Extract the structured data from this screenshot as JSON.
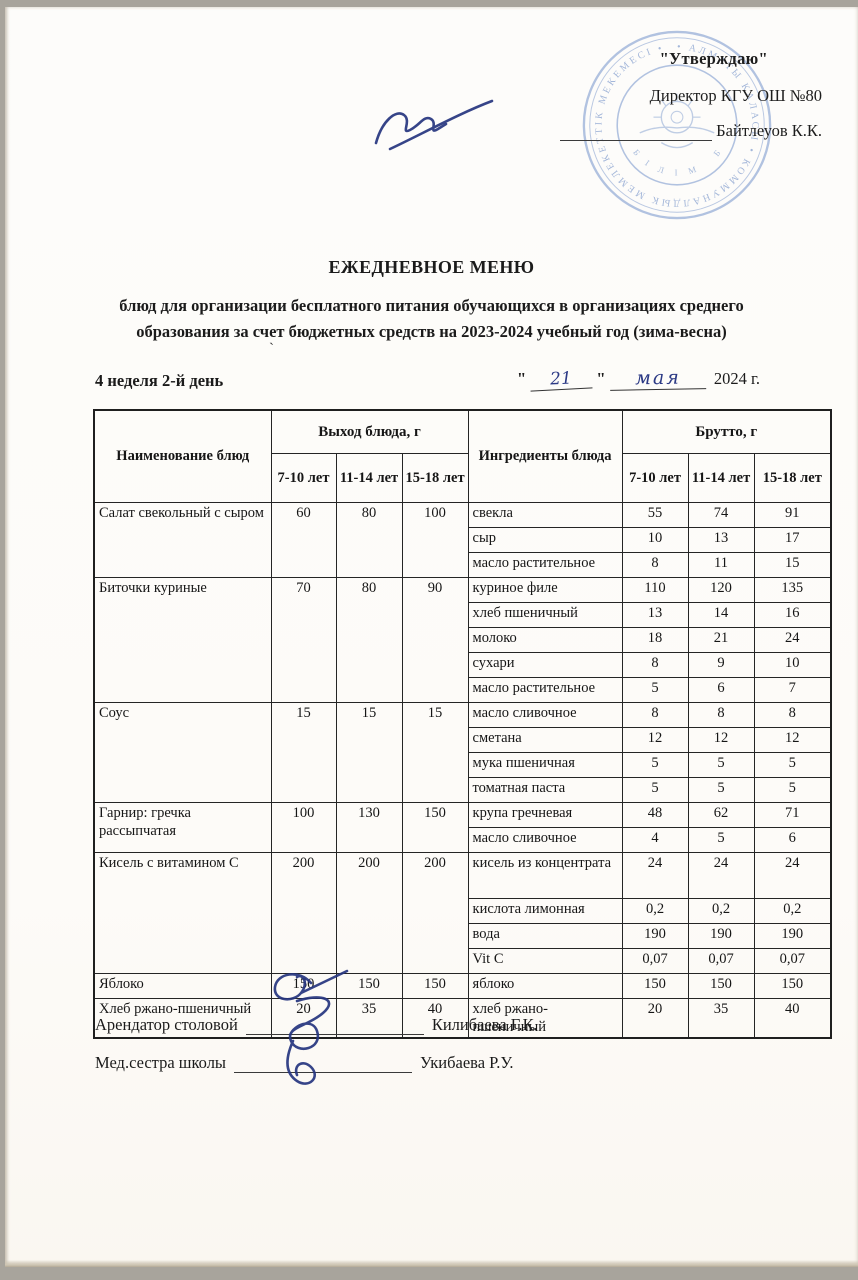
{
  "approval": {
    "approve": "\"Утверждаю\"",
    "director": "Директор КГУ ОШ №80",
    "director_name": "Байтлеуов К.К."
  },
  "stamp": {
    "ring_text": "• АЛМАТЫ КАЛАСЫ • КОММУНАЛДЫК МЕМЛЕКЕТТІК МЕКЕМЕСІ •",
    "inner_text": "БІЛІМ БЕРУ"
  },
  "header": {
    "title": "ЕЖЕДНЕВНОЕ МЕНЮ",
    "subtitle": "блюд для организации бесплатного питания обучающихся в организациях среднего образования за счет бюджетных средств на 2023-2024 учебный год (зима-весна)",
    "week_day": "4 неделя 2-й день",
    "quote": "\"",
    "date_day": "21",
    "date_month": "мая",
    "date_year": "2024 г.",
    "stray_mark": "`"
  },
  "table": {
    "header": {
      "name": "Наименование блюд",
      "output": "Выход блюда, г",
      "ingredients": "Ингредиенты блюда",
      "brutto": "Брутто, г",
      "ages": [
        "7-10 лет",
        "11-14 лет",
        "15-18 лет"
      ]
    },
    "groups": [
      {
        "dish": "Салат свекольный с сыром",
        "out": [
          "60",
          "80",
          "100"
        ],
        "ingredients": [
          {
            "name": "свекла",
            "b": [
              "55",
              "74",
              "91"
            ]
          },
          {
            "name": "сыр",
            "b": [
              "10",
              "13",
              "17"
            ]
          },
          {
            "name": "масло растительное",
            "b": [
              "8",
              "11",
              "15"
            ]
          }
        ]
      },
      {
        "dish": "Биточки куриные",
        "out": [
          "70",
          "80",
          "90"
        ],
        "ingredients": [
          {
            "name": "куриное филе",
            "b": [
              "110",
              "120",
              "135"
            ]
          },
          {
            "name": "хлеб пшеничный",
            "b": [
              "13",
              "14",
              "16"
            ]
          },
          {
            "name": "молоко",
            "b": [
              "18",
              "21",
              "24"
            ]
          },
          {
            "name": "сухари",
            "b": [
              "8",
              "9",
              "10"
            ]
          },
          {
            "name": "масло растительное",
            "b": [
              "5",
              "6",
              "7"
            ]
          }
        ]
      },
      {
        "dish": "Соус",
        "out": [
          "15",
          "15",
          "15"
        ],
        "ingredients": [
          {
            "name": "масло сливочное",
            "b": [
              "8",
              "8",
              "8"
            ]
          },
          {
            "name": "сметана",
            "b": [
              "12",
              "12",
              "12"
            ]
          },
          {
            "name": "мука пшеничная",
            "b": [
              "5",
              "5",
              "5"
            ]
          },
          {
            "name": "томатная паста",
            "b": [
              "5",
              "5",
              "5"
            ]
          }
        ]
      },
      {
        "dish": "Гарнир: гречка рассыпчатая",
        "out": [
          "100",
          "130",
          "150"
        ],
        "ingredients": [
          {
            "name": "крупа гречневая",
            "b": [
              "48",
              "62",
              "71"
            ]
          },
          {
            "name": "масло сливочное",
            "b": [
              "4",
              "5",
              "6"
            ]
          }
        ]
      },
      {
        "dish": "Кисель с витамином С",
        "out": [
          "200",
          "200",
          "200"
        ],
        "ingredients": [
          {
            "name": "кисель из концентрата",
            "b": [
              "24",
              "24",
              "24"
            ],
            "tall": true
          },
          {
            "name": "кислота лимонная",
            "b": [
              "0,2",
              "0,2",
              "0,2"
            ]
          },
          {
            "name": "вода",
            "b": [
              "190",
              "190",
              "190"
            ]
          },
          {
            "name": "Vit C",
            "b": [
              "0,07",
              "0,07",
              "0,07"
            ]
          }
        ]
      },
      {
        "dish": "Яблоко",
        "out": [
          "150",
          "150",
          "150"
        ],
        "ingredients": [
          {
            "name": "яблоко",
            "b": [
              "150",
              "150",
              "150"
            ]
          }
        ]
      },
      {
        "dish": "Хлеб ржано-пшеничный",
        "out": [
          "20",
          "35",
          "40"
        ],
        "ingredients": [
          {
            "name": "хлеб ржано-пшеничный",
            "b": [
              "20",
              "35",
              "40"
            ]
          }
        ]
      }
    ]
  },
  "footer": {
    "line1_label": "Арендатор столовой",
    "line1_name": "Килибаева Г.К.",
    "line2_label": "Мед.сестра школы",
    "line2_name": "Укибаева Р.У."
  },
  "colors": {
    "ink": "#1d1d1d",
    "pen_blue": "#2c3a85",
    "stamp_blue": "#9db3d9"
  }
}
